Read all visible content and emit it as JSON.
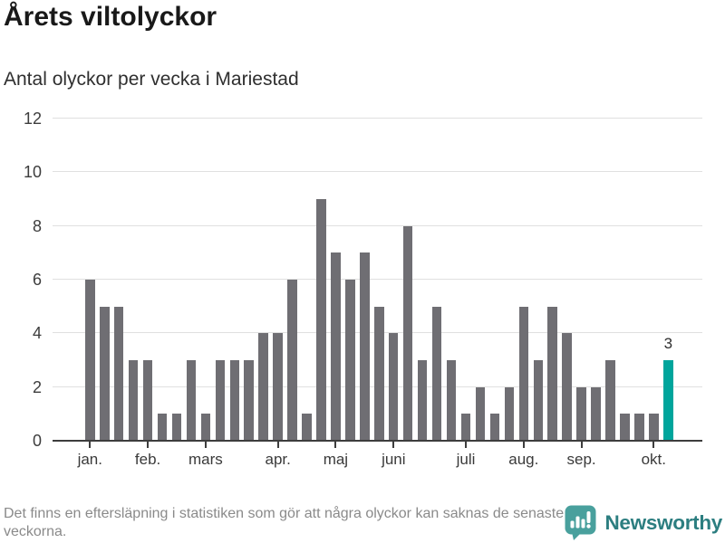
{
  "header": {
    "title": "Årets viltolyckor",
    "subtitle": "Antal olyckor per vecka i Mariestad"
  },
  "chart_data": {
    "type": "bar",
    "title": "Årets viltolyckor",
    "subtitle": "Antal olyckor per vecka i Mariestad",
    "xlabel": "",
    "ylabel": "",
    "categories_note": "one bar per week, January through October",
    "values": [
      6,
      5,
      5,
      3,
      3,
      1,
      1,
      3,
      1,
      3,
      3,
      3,
      4,
      4,
      6,
      1,
      9,
      7,
      6,
      7,
      5,
      4,
      8,
      3,
      5,
      3,
      1,
      2,
      1,
      2,
      5,
      3,
      5,
      4,
      2,
      2,
      3,
      1,
      1,
      1,
      3
    ],
    "highlight_last_bar": true,
    "last_bar_label": "3",
    "ylim": [
      0,
      12
    ],
    "y_ticks": [
      0,
      2,
      4,
      6,
      8,
      10,
      12
    ],
    "x_tick_labels": [
      "jan.",
      "feb.",
      "mars",
      "apr.",
      "maj",
      "juni",
      "juli",
      "aug.",
      "sep.",
      "okt."
    ],
    "x_tick_bar_index": [
      0,
      4,
      8,
      13,
      17,
      21,
      26,
      30,
      34,
      39
    ],
    "grid": true,
    "legend": "none",
    "colors": {
      "bar": "#6f6e73",
      "highlight": "#00a59c",
      "gridline": "#e0e0e0",
      "axis": "#3d3d3d",
      "tick_text": "#3a3a3a"
    }
  },
  "footer": {
    "note": "Det finns en eftersläpning i statistiken som gör att några olyckor kan saknas de senaste veckorna.",
    "brand": "Newsworthy",
    "brand_color": "#2c7e80",
    "brand_icon_color": "#49a09d"
  }
}
